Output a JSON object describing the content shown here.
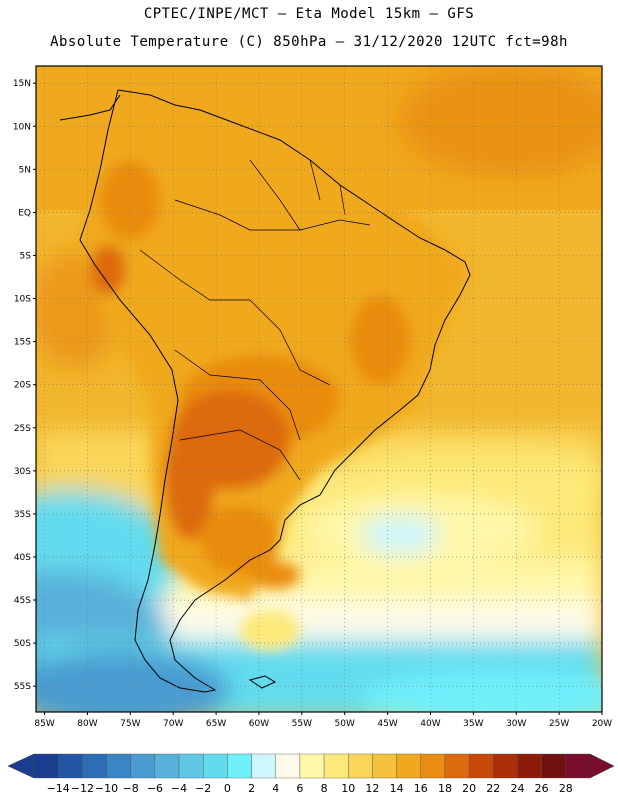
{
  "header": {
    "title_line1": "CPTEC/INPE/MCT –  Eta Model 15km – GFS",
    "title_line2": "Absolute Temperature (C) 850hPa – 31/12/2020 12UTC fct=98h"
  },
  "map": {
    "lon_range": [
      -86,
      -20
    ],
    "lat_range": [
      -58,
      17
    ],
    "lat_ticks": [
      "15N",
      "10N",
      "5N",
      "EQ",
      "5S",
      "10S",
      "15S",
      "20S",
      "25S",
      "30S",
      "35S",
      "40S",
      "45S",
      "50S",
      "55S"
    ],
    "lon_ticks": [
      "85W",
      "80W",
      "75W",
      "70W",
      "65W",
      "60W",
      "55W",
      "50W",
      "45W",
      "40W",
      "35W",
      "30W",
      "25W",
      "20W"
    ],
    "grid": true
  },
  "colorbar": {
    "labels": [
      "-14",
      "-12",
      "-10",
      "-8",
      "-6",
      "-4",
      "-2",
      "0",
      "2",
      "4",
      "6",
      "8",
      "10",
      "12",
      "14",
      "16",
      "18",
      "20",
      "22",
      "24",
      "26",
      "28"
    ],
    "colors": [
      "#1a3d8f",
      "#2455a4",
      "#2e6db5",
      "#3a85c4",
      "#4a9bd0",
      "#58b1da",
      "#5fc6e4",
      "#63dbee",
      "#6ff0fb",
      "#cdf6fd",
      "#fffbe8",
      "#fff7a8",
      "#fde97a",
      "#f9d65a",
      "#f4c23c",
      "#f0a81e",
      "#e98c10",
      "#dd6a0c",
      "#c8480a",
      "#ac2e08",
      "#8c1c08",
      "#701010",
      "#7a0d2c"
    ]
  }
}
